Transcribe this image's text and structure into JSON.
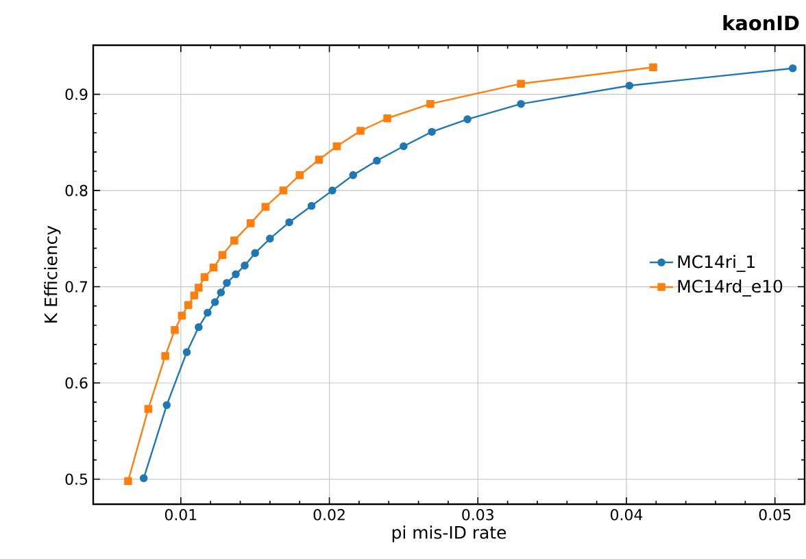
{
  "chart_data": {
    "type": "line",
    "title": "kaonID",
    "xlabel": "pi mis-ID rate",
    "ylabel": "K Efficiency",
    "xlim": [
      0.0041,
      0.052
    ],
    "ylim": [
      0.474,
      0.951
    ],
    "xticks": [
      0.01,
      0.02,
      0.03,
      0.04,
      0.05
    ],
    "yticks": [
      0.5,
      0.6,
      0.7,
      0.8,
      0.9
    ],
    "grid": true,
    "legend": "right",
    "line_style": "solid",
    "series": [
      {
        "name": "MC14ri_1",
        "color": "#1f77b4",
        "marker": "circle",
        "x": [
          0.0075,
          0.00905,
          0.0104,
          0.0112,
          0.0118,
          0.0123,
          0.0127,
          0.0131,
          0.0137,
          0.0143,
          0.015,
          0.016,
          0.0173,
          0.0188,
          0.0202,
          0.0216,
          0.0232,
          0.025,
          0.0269,
          0.0293,
          0.0329,
          0.0402,
          0.0512
        ],
        "values": [
          0.501,
          0.577,
          0.632,
          0.658,
          0.673,
          0.684,
          0.694,
          0.704,
          0.713,
          0.722,
          0.735,
          0.75,
          0.767,
          0.784,
          0.8,
          0.816,
          0.831,
          0.846,
          0.861,
          0.874,
          0.89,
          0.909,
          0.927
        ]
      },
      {
        "name": "MC14rd_e10",
        "color": "#ff7f0e",
        "marker": "square",
        "x": [
          0.00645,
          0.00781,
          0.00895,
          0.00959,
          0.01007,
          0.0105,
          0.0109,
          0.0112,
          0.0116,
          0.0122,
          0.0128,
          0.0136,
          0.0147,
          0.0157,
          0.0169,
          0.018,
          0.0193,
          0.0205,
          0.0221,
          0.0239,
          0.0268,
          0.0329,
          0.0418
        ],
        "values": [
          0.498,
          0.573,
          0.628,
          0.655,
          0.67,
          0.681,
          0.691,
          0.699,
          0.71,
          0.72,
          0.733,
          0.748,
          0.766,
          0.783,
          0.8,
          0.816,
          0.832,
          0.846,
          0.862,
          0.875,
          0.89,
          0.911,
          0.928
        ]
      }
    ]
  }
}
